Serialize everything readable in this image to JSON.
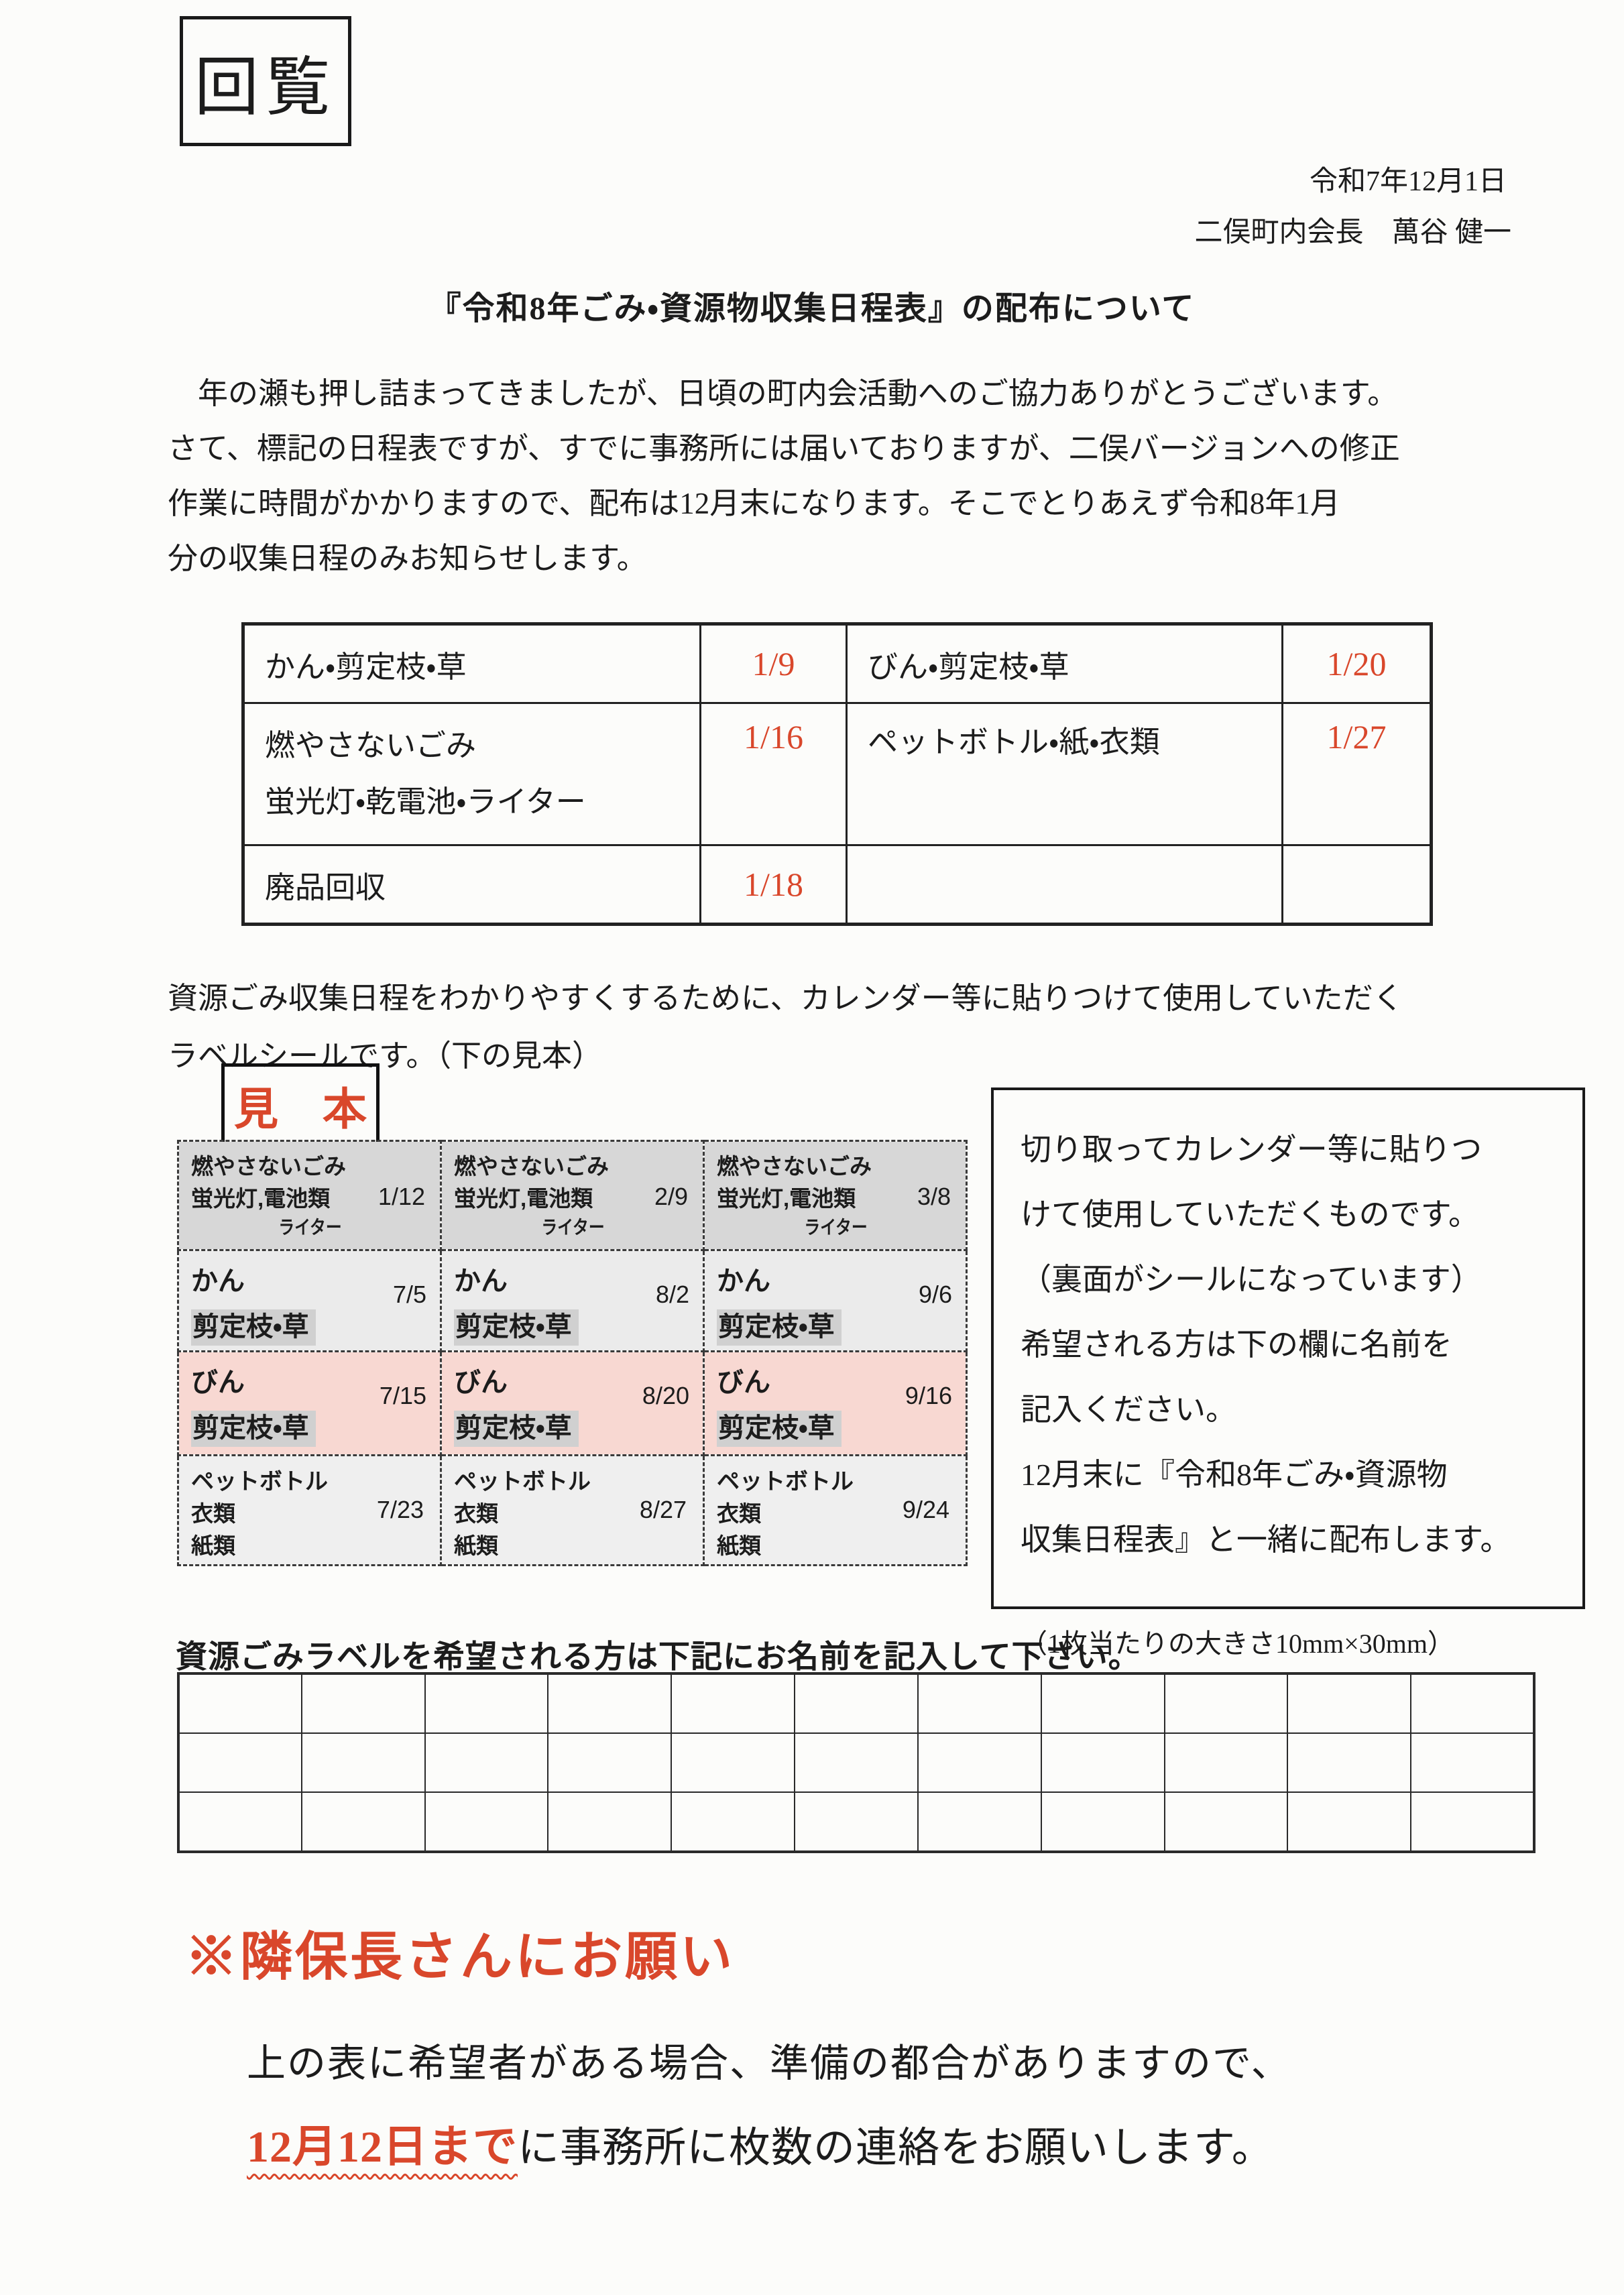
{
  "colors": {
    "accent_red": "#d9472b",
    "highlight_gray": "#d0d0d0",
    "row_pink": "#f8d8d2"
  },
  "header": {
    "kairan": "回覧",
    "date": "令和7年12月1日",
    "author": "二俣町内会長　萬谷 健一",
    "title": "『令和8年ごみ・資源物収集日程表』の配布について"
  },
  "body": {
    "para": [
      "　年の瀬も押し詰まってきましたが、日頃の町内会活動へのご協力ありがとうございます。",
      "さて、標記の日程表ですが、すでに事務所には届いておりますが、二俣バージョンへの修正",
      "作業に時間がかかりますので、配布は12月末になります。そこでとりあえず令和8年1月",
      "分の収集日程のみお知らせします。"
    ]
  },
  "schedule": {
    "rows": [
      {
        "item1": "かん・剪定枝・草",
        "date1": "1/9",
        "item2": "びん・剪定枝・草",
        "date2": "1/20"
      },
      {
        "item1_line1": "燃やさないごみ",
        "item1_line2": "蛍光灯・乾電池・ライター",
        "date1": "1/16",
        "item2": "ペットボトル・紙・衣類",
        "date2": "1/27"
      },
      {
        "item1": "廃品回収",
        "date1": "1/18",
        "item2": "",
        "date2": ""
      }
    ]
  },
  "sample": {
    "intro": [
      "資源ごみ収集日程をわかりやすくするために、カレンダー等に貼りつけて使用していただく",
      "ラベルシールです。（下の見本）"
    ],
    "stamp": "見　本",
    "labels": {
      "moyasanai": {
        "line1": "燃やさないごみ",
        "line2": "蛍光灯,電池類",
        "line3": "ライター",
        "dates": [
          "1/12",
          "2/9",
          "3/8"
        ]
      },
      "kan": {
        "line1": "かん",
        "line2": "剪定枝・草",
        "dates": [
          "7/5",
          "8/2",
          "9/6"
        ]
      },
      "bin": {
        "line1": "びん",
        "line2": "剪定枝・草",
        "dates": [
          "7/15",
          "8/20",
          "9/16"
        ]
      },
      "pet": {
        "line1": "ペットボトル",
        "line2": "衣類",
        "line3": "紙類",
        "dates": [
          "7/23",
          "8/27",
          "9/24"
        ]
      }
    }
  },
  "info_box": {
    "lines": [
      "切り取ってカレンダー等に貼りつ",
      "けて使用していただくものです。",
      "（裏面がシールになっています）",
      "希望される方は下の欄に名前を",
      "記入ください。",
      "12月末に『令和8年ごみ・資源物",
      "収集日程表』と一緒に配布します。"
    ],
    "size_note": "（1枚当たりの大きさ10mm×30mm）"
  },
  "request_line": "資源ごみラベルを希望される方は下記にお名前を記入して下さい。",
  "name_grid": {
    "rows": 3,
    "cols": 11
  },
  "notice": {
    "heading": "※隣保長さんにお願い",
    "line1": "上の表に希望者がある場合、準備の都合がありますので、",
    "deadline": "12月12日まで",
    "line2_rest": "に事務所に枚数の連絡をお願いします。"
  }
}
